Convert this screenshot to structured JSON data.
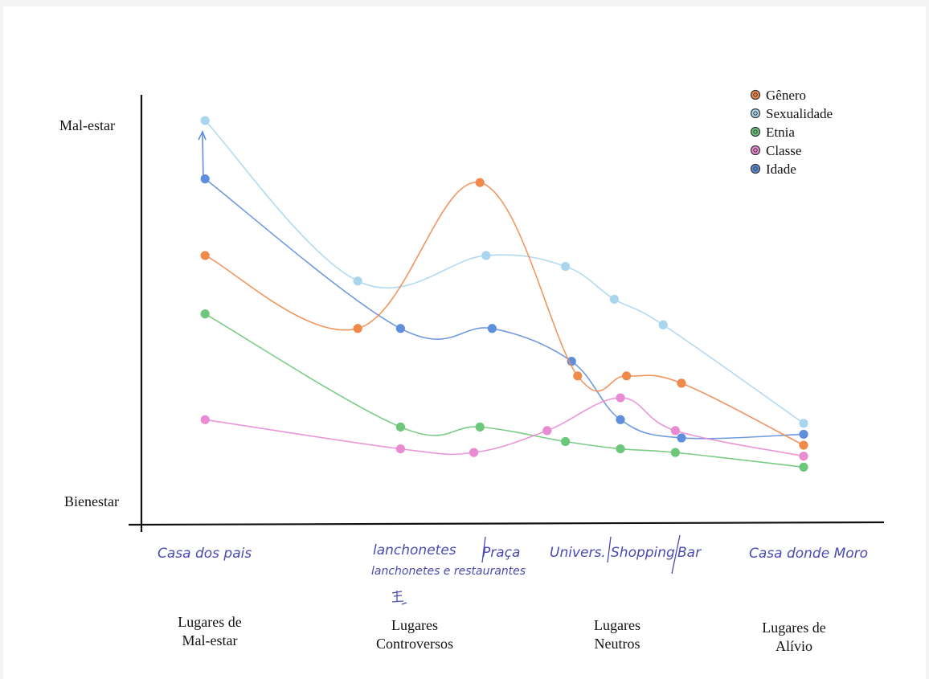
{
  "chart_data": {
    "type": "line",
    "y_axis": {
      "top_label": "Mal-estar",
      "bottom_label": "Bienestar"
    },
    "legend": {
      "placement": "top-right",
      "entries": [
        {
          "name": "Gênero",
          "color": "#f08a4b"
        },
        {
          "name": "Sexualidade",
          "color": "#a9d6ee"
        },
        {
          "name": "Etnia",
          "color": "#6cc77a"
        },
        {
          "name": "Classe",
          "color": "#e98bd3"
        },
        {
          "name": "Idade",
          "color": "#5f8fdc"
        }
      ]
    },
    "place_labels": [
      "Casa dos pais",
      "lanchonetes e restaurantes",
      "Praça",
      "Univers.",
      "Shopping",
      "Bar",
      "Casa donde Moro"
    ],
    "categories": [
      "Lugares de Mal-estar",
      "Lugares Controversos",
      "Lugares Neutros",
      "Lugares de Alívio"
    ],
    "note": "x = position along the place axis (0 = Casa dos pais, 1 = Casa donde Moro); y = 0 Bienestar … 1 Mal-estar",
    "series": [
      {
        "name": "Sexualidade",
        "color": "#a9d6ee",
        "points": [
          [
            0.02,
            1.0
          ],
          [
            0.27,
            0.56
          ],
          [
            0.48,
            0.63
          ],
          [
            0.61,
            0.6
          ],
          [
            0.69,
            0.51
          ],
          [
            0.77,
            0.44
          ],
          [
            1.0,
            0.17
          ]
        ]
      },
      {
        "name": "Idade",
        "color": "#5f8fdc",
        "points": [
          [
            0.02,
            0.84
          ],
          [
            0.34,
            0.43
          ],
          [
            0.49,
            0.43
          ],
          [
            0.62,
            0.34
          ],
          [
            0.7,
            0.18
          ],
          [
            0.8,
            0.13
          ],
          [
            1.0,
            0.14
          ]
        ]
      },
      {
        "name": "Gênero",
        "color": "#f08a4b",
        "points": [
          [
            0.02,
            0.63
          ],
          [
            0.27,
            0.43
          ],
          [
            0.47,
            0.83
          ],
          [
            0.63,
            0.3
          ],
          [
            0.71,
            0.3
          ],
          [
            0.8,
            0.28
          ],
          [
            1.0,
            0.11
          ]
        ]
      },
      {
        "name": "Etnia",
        "color": "#6cc77a",
        "points": [
          [
            0.02,
            0.47
          ],
          [
            0.34,
            0.16
          ],
          [
            0.47,
            0.16
          ],
          [
            0.61,
            0.12
          ],
          [
            0.7,
            0.1
          ],
          [
            0.79,
            0.09
          ],
          [
            1.0,
            0.05
          ]
        ]
      },
      {
        "name": "Classe",
        "color": "#e98bd3",
        "points": [
          [
            0.02,
            0.18
          ],
          [
            0.34,
            0.1
          ],
          [
            0.46,
            0.09
          ],
          [
            0.58,
            0.15
          ],
          [
            0.7,
            0.24
          ],
          [
            0.79,
            0.15
          ],
          [
            1.0,
            0.08
          ]
        ]
      }
    ]
  }
}
